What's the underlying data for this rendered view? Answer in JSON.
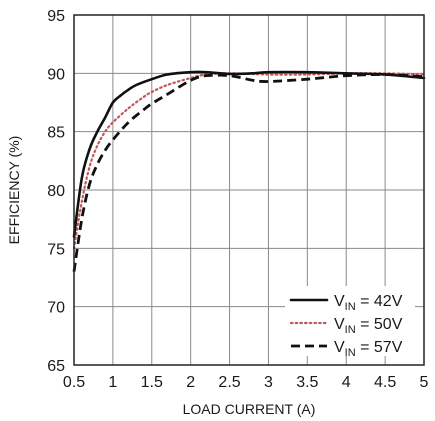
{
  "chart_data": {
    "type": "line",
    "title": "",
    "xlabel": "LOAD CURRENT (A)",
    "ylabel": "EFFICIENCY (%)",
    "xlim": [
      0.5,
      5
    ],
    "ylim": [
      65,
      95
    ],
    "x_ticks": [
      0.5,
      1,
      1.5,
      2,
      2.5,
      3,
      3.5,
      4,
      4.5,
      5
    ],
    "x_tick_labels": [
      "0.5",
      "1",
      "1.5",
      "2",
      "2.5",
      "3",
      "3.5",
      "4",
      "4.5",
      "5"
    ],
    "y_ticks": [
      65,
      70,
      75,
      80,
      85,
      90,
      95
    ],
    "y_tick_labels": [
      "65",
      "70",
      "75",
      "80",
      "85",
      "90",
      "95"
    ],
    "grid": true,
    "legend_position": "bottom-right",
    "series": [
      {
        "name_main": "V",
        "name_sub": "IN",
        "name_rest": " = 42V",
        "style": "solid",
        "color": "#111111",
        "points": [
          [
            0.5,
            76.0
          ],
          [
            0.6,
            81.0
          ],
          [
            0.7,
            83.5
          ],
          [
            0.8,
            85.0
          ],
          [
            0.9,
            86.2
          ],
          [
            1.0,
            87.5
          ],
          [
            1.1,
            88.1
          ],
          [
            1.2,
            88.6
          ],
          [
            1.3,
            89.0
          ],
          [
            1.5,
            89.5
          ],
          [
            1.7,
            89.9
          ],
          [
            2.0,
            90.1
          ],
          [
            2.2,
            90.1
          ],
          [
            2.5,
            89.95
          ],
          [
            2.8,
            90.0
          ],
          [
            3.0,
            90.1
          ],
          [
            3.5,
            90.1
          ],
          [
            4.0,
            90.0
          ],
          [
            4.5,
            89.9
          ],
          [
            5.0,
            89.6
          ]
        ]
      },
      {
        "name_main": "V",
        "name_sub": "IN",
        "name_rest": " = 50V",
        "style": "dotted",
        "color": "#c05a5a",
        "points": [
          [
            0.5,
            75.0
          ],
          [
            0.6,
            79.0
          ],
          [
            0.7,
            82.0
          ],
          [
            0.8,
            83.8
          ],
          [
            0.9,
            85.0
          ],
          [
            1.0,
            85.8
          ],
          [
            1.2,
            87.0
          ],
          [
            1.4,
            88.0
          ],
          [
            1.5,
            88.4
          ],
          [
            1.7,
            89.0
          ],
          [
            2.0,
            89.6
          ],
          [
            2.2,
            89.9
          ],
          [
            2.5,
            90.0
          ],
          [
            3.0,
            89.9
          ],
          [
            3.5,
            89.9
          ],
          [
            4.0,
            90.0
          ],
          [
            4.5,
            90.0
          ],
          [
            5.0,
            89.9
          ]
        ]
      },
      {
        "name_main": "V",
        "name_sub": "IN",
        "name_rest": " = 57V",
        "style": "dashed",
        "color": "#111111",
        "points": [
          [
            0.5,
            73.0
          ],
          [
            0.6,
            77.5
          ],
          [
            0.7,
            80.5
          ],
          [
            0.8,
            82.2
          ],
          [
            0.9,
            83.4
          ],
          [
            1.0,
            84.3
          ],
          [
            1.2,
            85.8
          ],
          [
            1.4,
            86.9
          ],
          [
            1.5,
            87.4
          ],
          [
            1.7,
            88.2
          ],
          [
            2.0,
            89.4
          ],
          [
            2.2,
            89.8
          ],
          [
            2.5,
            89.8
          ],
          [
            2.8,
            89.4
          ],
          [
            3.0,
            89.3
          ],
          [
            3.5,
            89.5
          ],
          [
            4.0,
            89.8
          ],
          [
            4.5,
            89.9
          ],
          [
            5.0,
            89.7
          ]
        ]
      }
    ]
  }
}
